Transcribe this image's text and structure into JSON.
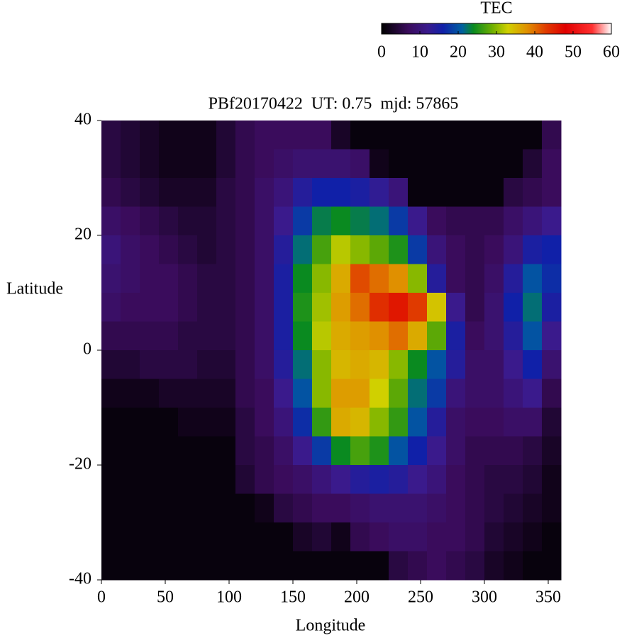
{
  "chart_data": {
    "type": "heatmap",
    "title": "PBf20170422  UT: 0.75  mjd: 57865",
    "xlabel": "Longitude",
    "ylabel": "Latitude",
    "colorbar_title": "TEC",
    "xlim": [
      0,
      360
    ],
    "ylim": [
      -40,
      40
    ],
    "xticks": [
      0,
      50,
      100,
      150,
      200,
      250,
      300,
      350
    ],
    "yticks": [
      -40,
      -20,
      0,
      20,
      40
    ],
    "clim": [
      0,
      60
    ],
    "cticks": [
      0,
      10,
      20,
      30,
      40,
      50,
      60
    ],
    "colorscale": [
      [
        0,
        "#000000"
      ],
      [
        7,
        "#3a0c5c"
      ],
      [
        12,
        "#3a1a8c"
      ],
      [
        16,
        "#1020a8"
      ],
      [
        21,
        "#0060a0"
      ],
      [
        24,
        "#0a8a20"
      ],
      [
        29,
        "#70b000"
      ],
      [
        33,
        "#d0d000"
      ],
      [
        38,
        "#e09000"
      ],
      [
        43,
        "#e03a00"
      ],
      [
        48,
        "#e00000"
      ],
      [
        55,
        "#ff3030"
      ],
      [
        60,
        "#ffffff"
      ]
    ],
    "x": [
      7.5,
      22.5,
      37.5,
      52.5,
      67.5,
      82.5,
      97.5,
      112.5,
      127.5,
      142.5,
      157.5,
      172.5,
      187.5,
      202.5,
      217.5,
      232.5,
      247.5,
      262.5,
      277.5,
      292.5,
      307.5,
      322.5,
      337.5,
      352.5
    ],
    "y": [
      37.5,
      32.5,
      27.5,
      22.5,
      17.5,
      12.5,
      7.5,
      2.5,
      -2.5,
      -7.5,
      -12.5,
      -17.5,
      -22.5,
      -27.5,
      -32.5,
      -37.5
    ],
    "z": [
      [
        5,
        4,
        3,
        2,
        2,
        2,
        4,
        6,
        7,
        7,
        7,
        7,
        3,
        1,
        1,
        1,
        1,
        1,
        1,
        1,
        1,
        1,
        1,
        6
      ],
      [
        5,
        4,
        3,
        2,
        2,
        2,
        4,
        6,
        7,
        8,
        9,
        9,
        9,
        8,
        2,
        1,
        1,
        1,
        1,
        1,
        1,
        1,
        4,
        7
      ],
      [
        6,
        5,
        4,
        3,
        3,
        3,
        5,
        6,
        8,
        10,
        14,
        16,
        16,
        15,
        13,
        10,
        1,
        1,
        1,
        1,
        1,
        5,
        6,
        7
      ],
      [
        8,
        7,
        6,
        5,
        4,
        4,
        5,
        6,
        8,
        12,
        18,
        23,
        24,
        23,
        22,
        18,
        12,
        7,
        6,
        6,
        6,
        8,
        10,
        12
      ],
      [
        10,
        8,
        7,
        6,
        5,
        4,
        5,
        6,
        8,
        14,
        22,
        27,
        32,
        30,
        28,
        25,
        18,
        10,
        7,
        6,
        7,
        10,
        15,
        16
      ],
      [
        9,
        8,
        7,
        7,
        6,
        5,
        5,
        6,
        8,
        15,
        24,
        30,
        36,
        42,
        40,
        38,
        30,
        14,
        7,
        6,
        8,
        14,
        20,
        17
      ],
      [
        8,
        7,
        7,
        7,
        6,
        5,
        5,
        6,
        8,
        15,
        25,
        31,
        37,
        40,
        44,
        46,
        43,
        34,
        12,
        6,
        9,
        16,
        22,
        15
      ],
      [
        6,
        6,
        6,
        6,
        5,
        5,
        5,
        6,
        8,
        15,
        24,
        32,
        36,
        37,
        38,
        40,
        36,
        28,
        15,
        7,
        9,
        14,
        20,
        12
      ],
      [
        4,
        4,
        5,
        5,
        5,
        4,
        4,
        6,
        8,
        14,
        22,
        30,
        35,
        36,
        35,
        30,
        24,
        20,
        14,
        8,
        8,
        12,
        16,
        9
      ],
      [
        2,
        2,
        2,
        3,
        3,
        3,
        3,
        6,
        7,
        12,
        20,
        30,
        37,
        37,
        33,
        28,
        22,
        18,
        10,
        8,
        8,
        10,
        12,
        6
      ],
      [
        1,
        1,
        1,
        1,
        2,
        2,
        2,
        5,
        7,
        10,
        17,
        26,
        36,
        35,
        30,
        26,
        20,
        14,
        8,
        7,
        7,
        8,
        8,
        4
      ],
      [
        1,
        1,
        1,
        1,
        1,
        1,
        1,
        5,
        6,
        8,
        12,
        18,
        24,
        27,
        25,
        20,
        16,
        12,
        8,
        6,
        6,
        6,
        5,
        3
      ],
      [
        1,
        1,
        1,
        1,
        1,
        1,
        1,
        4,
        6,
        7,
        8,
        10,
        12,
        14,
        15,
        14,
        12,
        10,
        7,
        6,
        5,
        5,
        4,
        2
      ],
      [
        1,
        1,
        1,
        1,
        1,
        1,
        1,
        1,
        2,
        5,
        6,
        7,
        7,
        8,
        9,
        9,
        9,
        8,
        7,
        6,
        5,
        4,
        3,
        2
      ],
      [
        1,
        1,
        1,
        1,
        1,
        1,
        1,
        1,
        1,
        1,
        3,
        4,
        2,
        6,
        7,
        8,
        8,
        7,
        7,
        6,
        4,
        3,
        2,
        1
      ],
      [
        1,
        1,
        1,
        1,
        1,
        1,
        1,
        1,
        1,
        1,
        1,
        1,
        1,
        1,
        1,
        5,
        6,
        7,
        6,
        5,
        3,
        2,
        1,
        1
      ]
    ]
  }
}
